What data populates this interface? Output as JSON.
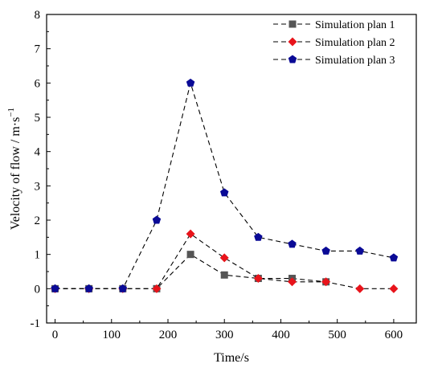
{
  "chart_data": {
    "type": "line",
    "title": "",
    "xlabel": "Time/s",
    "ylabel": "Velocity of  flow / m·s",
    "ylabel_superscript": "−1",
    "xlim": [
      -15,
      640
    ],
    "ylim": [
      -1,
      8
    ],
    "xticks": [
      0,
      100,
      200,
      300,
      400,
      500,
      600
    ],
    "yticks": [
      -1,
      0,
      1,
      2,
      3,
      4,
      5,
      6,
      7,
      8
    ],
    "x_tick_labels": [
      "0",
      "100",
      "200",
      "300",
      "400",
      "500",
      "600"
    ],
    "y_tick_labels": [
      "-1",
      "0",
      "1",
      "2",
      "3",
      "4",
      "5",
      "6",
      "7",
      "8"
    ],
    "grid": false,
    "legend_position": "top-right",
    "series": [
      {
        "name": "Simulation plan 1",
        "marker": "square",
        "color": "#555555",
        "x": [
          0,
          60,
          120,
          180,
          240,
          300,
          360,
          420,
          480
        ],
        "y": [
          0,
          0,
          0,
          0,
          1.0,
          0.4,
          0.3,
          0.3,
          0.2
        ]
      },
      {
        "name": "Simulation plan 2",
        "marker": "diamond",
        "color": "#e8141b",
        "x": [
          0,
          60,
          120,
          180,
          240,
          300,
          360,
          420,
          480,
          540,
          600
        ],
        "y": [
          0,
          0,
          0,
          0,
          1.6,
          0.9,
          0.3,
          0.2,
          0.2,
          0,
          0
        ]
      },
      {
        "name": "Simulation plan 3",
        "marker": "pentagon",
        "color": "#0a0a96",
        "x": [
          0,
          60,
          120,
          180,
          240,
          300,
          360,
          420,
          480,
          540,
          600
        ],
        "y": [
          0,
          0,
          0,
          2.0,
          6.0,
          2.8,
          1.5,
          1.3,
          1.1,
          1.1,
          0.9
        ]
      }
    ]
  }
}
